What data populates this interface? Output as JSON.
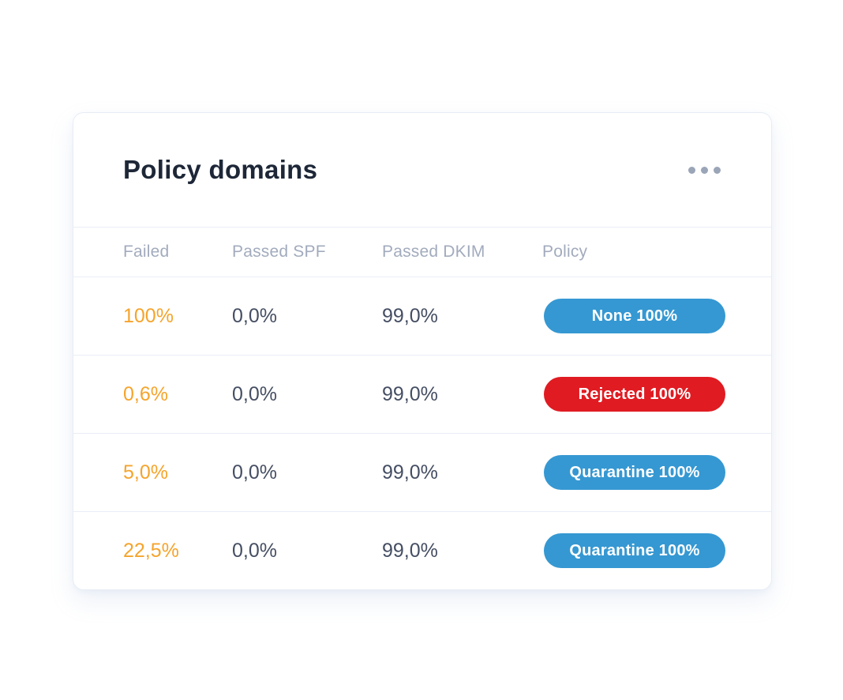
{
  "card": {
    "title": "Policy domains",
    "menu_icon": "ellipsis-icon"
  },
  "table": {
    "columns": {
      "failed": "Failed",
      "passed_spf": "Passed SPF",
      "passed_dkim": "Passed DKIM",
      "policy": "Policy"
    },
    "rows": [
      {
        "failed": "100%",
        "passed_spf": "0,0%",
        "passed_dkim": "99,0%",
        "policy": {
          "label": "None 100%",
          "color": "#3598d2"
        }
      },
      {
        "failed": "0,6%",
        "passed_spf": "0,0%",
        "passed_dkim": "99,0%",
        "policy": {
          "label": "Rejected 100%",
          "color": "#e01b22"
        }
      },
      {
        "failed": "5,0%",
        "passed_spf": "0,0%",
        "passed_dkim": "99,0%",
        "policy": {
          "label": "Quarantine 100%",
          "color": "#3598d2"
        }
      },
      {
        "failed": "22,5%",
        "passed_spf": "0,0%",
        "passed_dkim": "99,0%",
        "policy": {
          "label": "Quarantine 100%",
          "color": "#3598d2"
        }
      }
    ]
  },
  "colors": {
    "accent_blue": "#3598d2",
    "accent_red": "#e01b22",
    "failed_orange": "#f5a42c",
    "title_navy": "#1d2737",
    "value_slate": "#454e63",
    "header_gray": "#a2abbd",
    "divider": "#e9eef6"
  }
}
